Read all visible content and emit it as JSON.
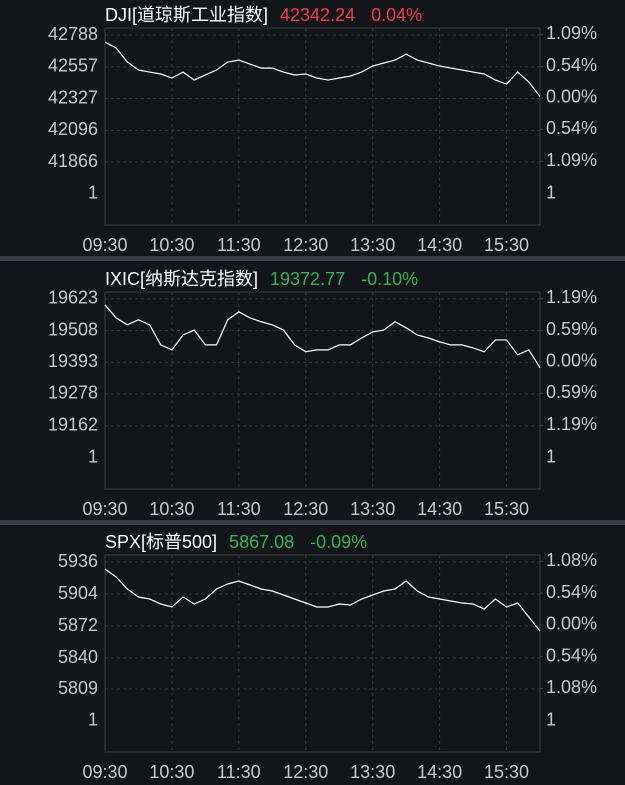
{
  "chart_data": [
    {
      "type": "line",
      "title": "DJI[道琼斯工业指数]",
      "price": "42342.24",
      "change": "0.04%",
      "quote_color": "#f0394a",
      "color": "#ffffff",
      "grid": true,
      "x": [
        "09:30",
        "09:40",
        "09:50",
        "10:00",
        "10:10",
        "10:20",
        "10:30",
        "10:40",
        "10:50",
        "11:00",
        "11:10",
        "11:20",
        "11:30",
        "11:40",
        "11:50",
        "12:00",
        "12:10",
        "12:20",
        "12:30",
        "12:40",
        "12:50",
        "13:00",
        "13:10",
        "13:20",
        "13:30",
        "13:40",
        "13:50",
        "14:00",
        "14:10",
        "14:20",
        "14:30",
        "14:40",
        "14:50",
        "15:00",
        "15:10",
        "15:20",
        "15:30",
        "15:40",
        "15:50",
        "16:00"
      ],
      "values": [
        42737,
        42694,
        42592,
        42534,
        42519,
        42505,
        42476,
        42519,
        42461,
        42498,
        42534,
        42592,
        42606,
        42577,
        42548,
        42548,
        42519,
        42498,
        42505,
        42476,
        42461,
        42476,
        42490,
        42519,
        42563,
        42585,
        42606,
        42650,
        42606,
        42585,
        42563,
        42548,
        42534,
        42519,
        42505,
        42461,
        42432,
        42519,
        42447,
        42342
      ],
      "xlim": [
        "09:30",
        "16:00"
      ],
      "xticks": [
        "09:30",
        "10:30",
        "11:30",
        "12:30",
        "13:30",
        "14:30",
        "15:30"
      ],
      "ylim": [
        41409,
        42839
      ],
      "yticks": [
        42788,
        42557,
        42327,
        42096,
        41866
      ],
      "y2lim": [
        -2.18,
        1.2
      ],
      "y2ticks": [
        {
          "value": 1.09,
          "label": "1.09%"
        },
        {
          "value": 0.54,
          "label": "0.54%"
        },
        {
          "value": 0,
          "label": "0.00%"
        },
        {
          "value": -0.54,
          "label": "0.54%"
        },
        {
          "value": -1.09,
          "label": "1.09%"
        }
      ],
      "volume_tick": 1
    },
    {
      "type": "line",
      "title": "IXIC[纳斯达克指数]",
      "price": "19372.77",
      "change": "-0.10%",
      "quote_color": "#2fb35a",
      "color": "#ffffff",
      "grid": true,
      "x": [
        "09:30",
        "09:40",
        "09:50",
        "10:00",
        "10:10",
        "10:20",
        "10:30",
        "10:40",
        "10:50",
        "11:00",
        "11:10",
        "11:20",
        "11:30",
        "11:40",
        "11:50",
        "12:00",
        "12:10",
        "12:20",
        "12:30",
        "12:40",
        "12:50",
        "13:00",
        "13:10",
        "13:20",
        "13:30",
        "13:40",
        "13:50",
        "14:00",
        "14:10",
        "14:20",
        "14:30",
        "14:40",
        "14:50",
        "15:00",
        "15:10",
        "15:20",
        "15:30",
        "15:40",
        "15:50",
        "16:00"
      ],
      "values": [
        19601,
        19554,
        19529,
        19547,
        19529,
        19456,
        19438,
        19492,
        19510,
        19456,
        19456,
        19547,
        19576,
        19554,
        19540,
        19529,
        19510,
        19456,
        19431,
        19438,
        19438,
        19456,
        19456,
        19481,
        19503,
        19510,
        19540,
        19518,
        19492,
        19481,
        19467,
        19456,
        19456,
        19445,
        19431,
        19474,
        19474,
        19420,
        19438,
        19373
      ],
      "xlim": [
        "09:30",
        "16:00"
      ],
      "xticks": [
        "09:30",
        "10:30",
        "11:30",
        "12:30",
        "13:30",
        "14:30",
        "15:30"
      ],
      "ylim": [
        18933,
        19648
      ],
      "yticks": [
        19623,
        19508,
        19393,
        19278,
        19162
      ],
      "y2lim": [
        -2.38,
        1.31
      ],
      "y2ticks": [
        {
          "value": 1.19,
          "label": "1.19%"
        },
        {
          "value": 0.59,
          "label": "0.59%"
        },
        {
          "value": 0,
          "label": "0.00%"
        },
        {
          "value": -0.59,
          "label": "0.59%"
        },
        {
          "value": -1.19,
          "label": "1.19%"
        }
      ],
      "volume_tick": 1
    },
    {
      "type": "line",
      "title": "SPX[标普500]",
      "price": "5867.08",
      "change": "-0.09%",
      "quote_color": "#2fb35a",
      "color": "#ffffff",
      "grid": true,
      "x": [
        "09:30",
        "09:40",
        "09:50",
        "10:00",
        "10:10",
        "10:20",
        "10:30",
        "10:40",
        "10:50",
        "11:00",
        "11:10",
        "11:20",
        "11:30",
        "11:40",
        "11:50",
        "12:00",
        "12:10",
        "12:20",
        "12:30",
        "12:40",
        "12:50",
        "13:00",
        "13:10",
        "13:20",
        "13:30",
        "13:40",
        "13:50",
        "14:00",
        "14:10",
        "14:20",
        "14:30",
        "14:40",
        "14:50",
        "15:00",
        "15:10",
        "15:20",
        "15:30",
        "15:40",
        "15:50",
        "16:00"
      ],
      "values": [
        5929,
        5921,
        5909,
        5901,
        5899,
        5894,
        5891,
        5901,
        5894,
        5899,
        5909,
        5914,
        5917,
        5913,
        5909,
        5907,
        5903,
        5899,
        5895,
        5891,
        5891,
        5894,
        5893,
        5899,
        5903,
        5907,
        5909,
        5917,
        5907,
        5901,
        5899,
        5897,
        5895,
        5894,
        5889,
        5899,
        5891,
        5895,
        5881,
        5867
      ],
      "xlim": [
        "09:30",
        "16:00"
      ],
      "xticks": [
        "09:30",
        "10:30",
        "11:30",
        "12:30",
        "13:30",
        "14:30",
        "15:30"
      ],
      "ylim": [
        5746,
        5943
      ],
      "yticks": [
        5936,
        5904,
        5872,
        5840,
        5809
      ],
      "y2lim": [
        -2.16,
        1.19
      ],
      "y2ticks": [
        {
          "value": 1.08,
          "label": "1.08%"
        },
        {
          "value": 0.54,
          "label": "0.54%"
        },
        {
          "value": 0,
          "label": "0.00%"
        },
        {
          "value": -0.54,
          "label": "0.54%"
        },
        {
          "value": -1.08,
          "label": "1.08%"
        }
      ],
      "volume_tick": 1
    }
  ]
}
